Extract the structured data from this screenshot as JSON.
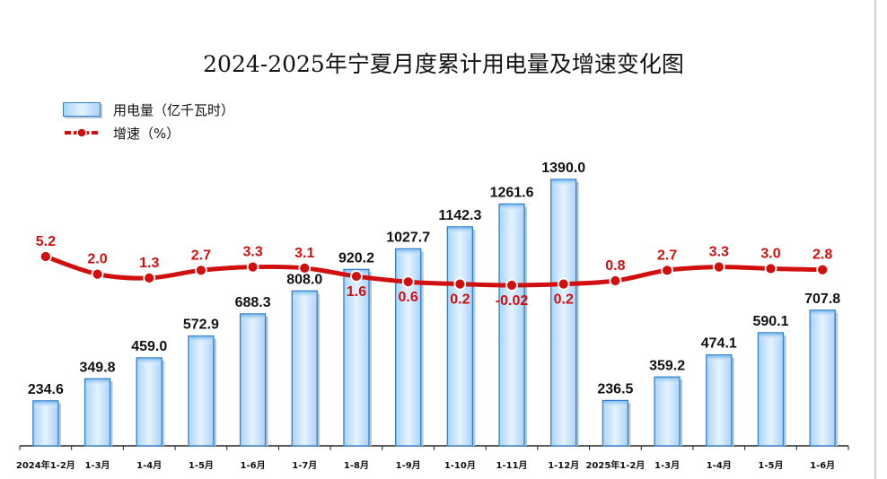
{
  "legend": {
    "bar_label": "用电量（亿千瓦时）",
    "line_label": "增速（%）"
  },
  "colors": {
    "bar_fill_edge": "#a9d3f8",
    "bar_fill_center": "#e6f3ff",
    "bar_border": "#2f7fd0",
    "line": "#d10f0f"
  },
  "chart_data": {
    "type": "bar",
    "title": "2024-2025年宁夏月度累计用电量及增速变化图",
    "categories": [
      "2024年1-2月",
      "1-3月",
      "1-4月",
      "1-5月",
      "1-6月",
      "1-7月",
      "1-8月",
      "1-9月",
      "1-10月",
      "1-11月",
      "1-12月",
      "2025年1-2月",
      "1-3月",
      "1-4月",
      "1-5月",
      "1-6月"
    ],
    "series": [
      {
        "name": "用电量（亿千瓦时）",
        "type": "bar",
        "values": [
          234.6,
          349.8,
          459.0,
          572.9,
          688.3,
          808.0,
          920.2,
          1027.7,
          1142.3,
          1261.6,
          1390.0,
          236.5,
          359.2,
          474.1,
          590.1,
          707.8
        ],
        "labels": [
          "234.6",
          "349.8",
          "459.0",
          "572.9",
          "688.3",
          "808.0",
          "920.2",
          "1027.7",
          "1142.3",
          "1261.6",
          "1390.0",
          "236.5",
          "359.2",
          "474.1",
          "590.1",
          "707.8"
        ]
      },
      {
        "name": "增速（%）",
        "type": "line",
        "values": [
          5.2,
          2.0,
          1.3,
          2.7,
          3.3,
          3.1,
          1.6,
          0.6,
          0.2,
          -0.02,
          0.2,
          0.8,
          2.7,
          3.3,
          3.0,
          2.8
        ],
        "labels": [
          "5.2",
          "2.0",
          "1.3",
          "2.7",
          "3.3",
          "3.1",
          "1.6",
          "0.6",
          "0.2",
          "-0.02",
          "0.2",
          "0.8",
          "2.7",
          "3.3",
          "3.0",
          "2.8"
        ]
      }
    ],
    "legend_position": "top-left",
    "grid": false
  }
}
